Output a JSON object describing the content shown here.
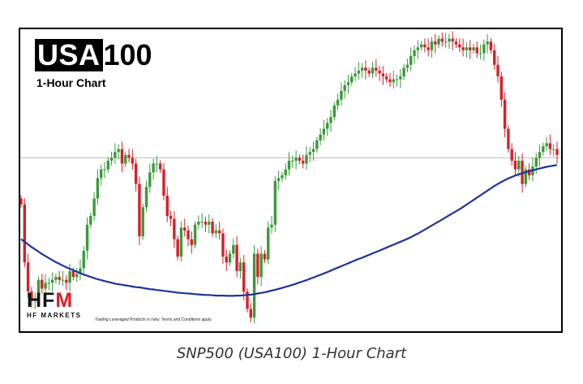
{
  "brand": {
    "symbol_boxed": "USA",
    "symbol_number": "100",
    "subtitle": "1-Hour Chart"
  },
  "logo": {
    "main": "HFM",
    "sub": "HF MARKETS"
  },
  "disclaimer": "Trading Leveraged Products is risky. Terms and Conditions apply.",
  "caption": "SNP500 (USA100) 1-Hour Chart",
  "colors": {
    "up": "#3a9a3a",
    "down": "#d8202a",
    "ma": "#1f3399",
    "reference_line": "#bbbbbb",
    "frame": "#000000"
  },
  "chart_data": {
    "type": "candlestick",
    "title": "1-Hour Chart",
    "xlabel": "",
    "ylabel": "",
    "axes_visible": false,
    "grid": false,
    "ylim": [
      0,
      100
    ],
    "reference_level": 58,
    "series": [
      {
        "type": "candlestick",
        "close": [
          42,
          22,
          12,
          9,
          9,
          16,
          13,
          15,
          15,
          16,
          17,
          16,
          16,
          15,
          19,
          17,
          18,
          20,
          26,
          35,
          38,
          44,
          51,
          54,
          54,
          57,
          58,
          60,
          61,
          56,
          59,
          58,
          56,
          49,
          31,
          41,
          48,
          53,
          56,
          56,
          54,
          45,
          38,
          37,
          30,
          24,
          34,
          33,
          30,
          28,
          35,
          36,
          36,
          35,
          36,
          32,
          33,
          32,
          24,
          22,
          25,
          28,
          19,
          22,
          12,
          6,
          3,
          25,
          17,
          25,
          23,
          34,
          35,
          50,
          51,
          52,
          54,
          57,
          57,
          58,
          57,
          56,
          59,
          60,
          61,
          64,
          66,
          68,
          70,
          72,
          76,
          78,
          81,
          83,
          84,
          86,
          87,
          88,
          89,
          88,
          87,
          89,
          88,
          87,
          86,
          85,
          84,
          85,
          85,
          86,
          89,
          90,
          93,
          95,
          96,
          97,
          96,
          95,
          98,
          97,
          99,
          98,
          98,
          99,
          98,
          97,
          96,
          95,
          96,
          95,
          96,
          94,
          94,
          97,
          98,
          95,
          90,
          86,
          78,
          68,
          61,
          57,
          54,
          57,
          49,
          54,
          52,
          55,
          58,
          60,
          62,
          63,
          61,
          61,
          59
        ]
      },
      {
        "type": "line",
        "values": [
          30,
          29.1,
          28.2,
          27.3,
          26.5,
          25.7,
          24.9,
          24.2,
          23.5,
          22.8,
          22.1,
          21.5,
          20.9,
          20.3,
          19.8,
          19.3,
          18.8,
          18.3,
          17.8,
          17.4,
          17,
          16.6,
          16.2,
          15.9,
          15.6,
          15.3,
          15,
          14.7,
          14.5,
          14.3,
          14.1,
          13.9,
          13.7,
          13.5,
          13.4,
          13.2,
          13,
          12.8,
          12.7,
          12.5,
          12.4,
          12.2,
          12.1,
          11.9,
          11.8,
          11.6,
          11.5,
          11.4,
          11.3,
          11.2,
          11.1,
          11,
          10.9,
          10.8,
          10.8,
          10.7,
          10.6,
          10.6,
          10.6,
          10.5,
          10.5,
          10.5,
          10.6,
          10.6,
          10.7,
          10.8,
          10.9,
          11.1,
          11.3,
          11.5,
          11.7,
          12,
          12.3,
          12.6,
          12.9,
          13.2,
          13.6,
          13.9,
          14.3,
          14.7,
          15.1,
          15.5,
          15.9,
          16.4,
          16.8,
          17.3,
          17.7,
          18.2,
          18.7,
          19.2,
          19.7,
          20.2,
          20.7,
          21.2,
          21.7,
          22.2,
          22.7,
          23.2,
          23.6,
          24.1,
          24.6,
          25.1,
          25.6,
          26.1,
          26.6,
          27.1,
          27.6,
          28.1,
          28.6,
          29.1,
          29.6,
          30.1,
          30.7,
          31.3,
          31.9,
          32.6,
          33.3,
          34,
          34.7,
          35.4,
          36.1,
          36.8,
          37.5,
          38.2,
          38.9,
          39.6,
          40.3,
          41.1,
          41.9,
          42.7,
          43.5,
          44.3,
          45.1,
          45.9,
          46.7,
          47.5,
          48.3,
          49,
          49.7,
          50.3,
          50.9,
          51.4,
          51.9,
          52.3,
          52.7,
          53.1,
          53.4,
          53.7,
          54,
          54.3,
          54.6,
          54.9,
          55.1,
          55.3,
          55.5
        ]
      }
    ]
  }
}
